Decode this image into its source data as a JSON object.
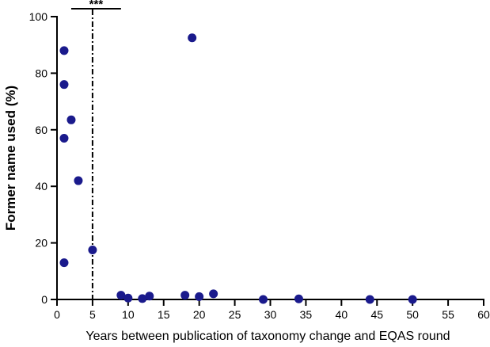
{
  "chart_data": {
    "type": "scatter",
    "xlabel": "Years between publication of taxonomy change and EQAS round",
    "ylabel": "Former name used (%)",
    "xlim": [
      0,
      60
    ],
    "ylim": [
      0,
      100
    ],
    "x_ticks": [
      0,
      5,
      10,
      15,
      20,
      25,
      30,
      35,
      40,
      45,
      50,
      55,
      60
    ],
    "y_ticks": [
      0,
      20,
      40,
      60,
      80,
      100
    ],
    "grid": false,
    "point_color": "#1a1a8c",
    "series": [
      {
        "points": [
          {
            "x": 1,
            "y": 88
          },
          {
            "x": 1,
            "y": 76
          },
          {
            "x": 2,
            "y": 63.5
          },
          {
            "x": 1,
            "y": 57
          },
          {
            "x": 3,
            "y": 42
          },
          {
            "x": 1,
            "y": 13
          },
          {
            "x": 5,
            "y": 17.5
          },
          {
            "x": 9,
            "y": 1.5
          },
          {
            "x": 10,
            "y": 0.5
          },
          {
            "x": 12,
            "y": 0.3
          },
          {
            "x": 13,
            "y": 1.2
          },
          {
            "x": 18,
            "y": 1.5
          },
          {
            "x": 19,
            "y": 92.5
          },
          {
            "x": 20,
            "y": 1
          },
          {
            "x": 22,
            "y": 2
          },
          {
            "x": 29,
            "y": 0
          },
          {
            "x": 34,
            "y": 0.2
          },
          {
            "x": 44,
            "y": 0
          },
          {
            "x": 50,
            "y": 0
          }
        ]
      }
    ],
    "reference_line": {
      "x": 5,
      "style": "dash-dot"
    },
    "significance": {
      "label": "***",
      "x_range": [
        2,
        9
      ]
    }
  }
}
